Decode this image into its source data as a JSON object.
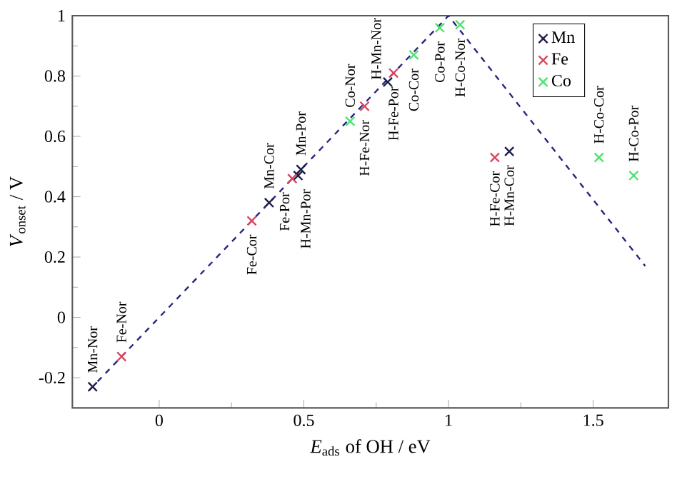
{
  "chart_data": {
    "type": "scatter",
    "xlabel": "*E*$_{ads}$ of OH / eV",
    "ylabel": "*V*$_{onset}$ / V",
    "xlim": [
      -0.3,
      1.76
    ],
    "ylim": [
      -0.3,
      1
    ],
    "xticks": [
      0,
      0.5,
      1,
      1.5
    ],
    "yticks": [
      -0.2,
      0,
      0.2,
      0.4,
      0.6,
      0.8,
      1
    ],
    "marker": "cross",
    "legend": "top right",
    "series": [
      {
        "name": "Mn",
        "color": "#1c1c4a",
        "x": [
          -0.23,
          0.38,
          0.49,
          0.48,
          0.79,
          1.21
        ],
        "values": [
          -0.23,
          0.38,
          0.49,
          0.47,
          0.78,
          0.55
        ]
      },
      {
        "name": "Fe",
        "color": "#d9475e",
        "x": [
          -0.13,
          0.32,
          0.46,
          0.71,
          0.81,
          1.16
        ],
        "values": [
          -0.13,
          0.32,
          0.46,
          0.7,
          0.81,
          0.53
        ]
      },
      {
        "name": "Co",
        "color": "#4fe36e",
        "x": [
          0.66,
          0.88,
          0.97,
          1.04,
          1.52,
          1.64
        ],
        "values": [
          0.65,
          0.87,
          0.96,
          0.97,
          0.53,
          0.47
        ]
      },
      {
        "type": "line",
        "marker": "none",
        "line_style": "dashed",
        "color": "#262680",
        "x": [
          -0.24,
          1,
          1.68
        ],
        "values": [
          -0.24,
          1,
          0.17
        ]
      }
    ],
    "annotations": [
      {
        "text": "Mn-Nor",
        "x": -0.23,
        "y": -0.23
      },
      {
        "text": "Fe-Nor",
        "x": -0.13,
        "y": -0.13
      },
      {
        "text": "Fe-Cor",
        "x": 0.32,
        "y": 0.32
      },
      {
        "text": "Mn-Cor",
        "x": 0.38,
        "y": 0.38
      },
      {
        "text": "Fe-Por",
        "x": 0.46,
        "y": 0.46
      },
      {
        "text": "H-Mn-Por",
        "x": 0.48,
        "y": 0.47
      },
      {
        "text": "Mn-Por",
        "x": 0.49,
        "y": 0.49
      },
      {
        "text": "Co-Nor",
        "x": 0.66,
        "y": 0.65
      },
      {
        "text": "H-Fe-Nor",
        "x": 0.71,
        "y": 0.7
      },
      {
        "text": "H-Mn-Nor",
        "x": 0.79,
        "y": 0.78
      },
      {
        "text": "H-Fe-Por",
        "x": 0.81,
        "y": 0.81
      },
      {
        "text": "Co-Cor",
        "x": 0.88,
        "y": 0.87
      },
      {
        "text": "Co-Por",
        "x": 0.97,
        "y": 0.96
      },
      {
        "text": "H-Co-Nor",
        "x": 1.04,
        "y": 0.97
      },
      {
        "text": "H-Fe-Cor",
        "x": 1.16,
        "y": 0.53
      },
      {
        "text": "H-Mn-Cor",
        "x": 1.21,
        "y": 0.55
      },
      {
        "text": "H-Co-Cor",
        "x": 1.52,
        "y": 0.53
      },
      {
        "text": "H-Co-Por",
        "x": 1.64,
        "y": 0.47
      }
    ]
  }
}
